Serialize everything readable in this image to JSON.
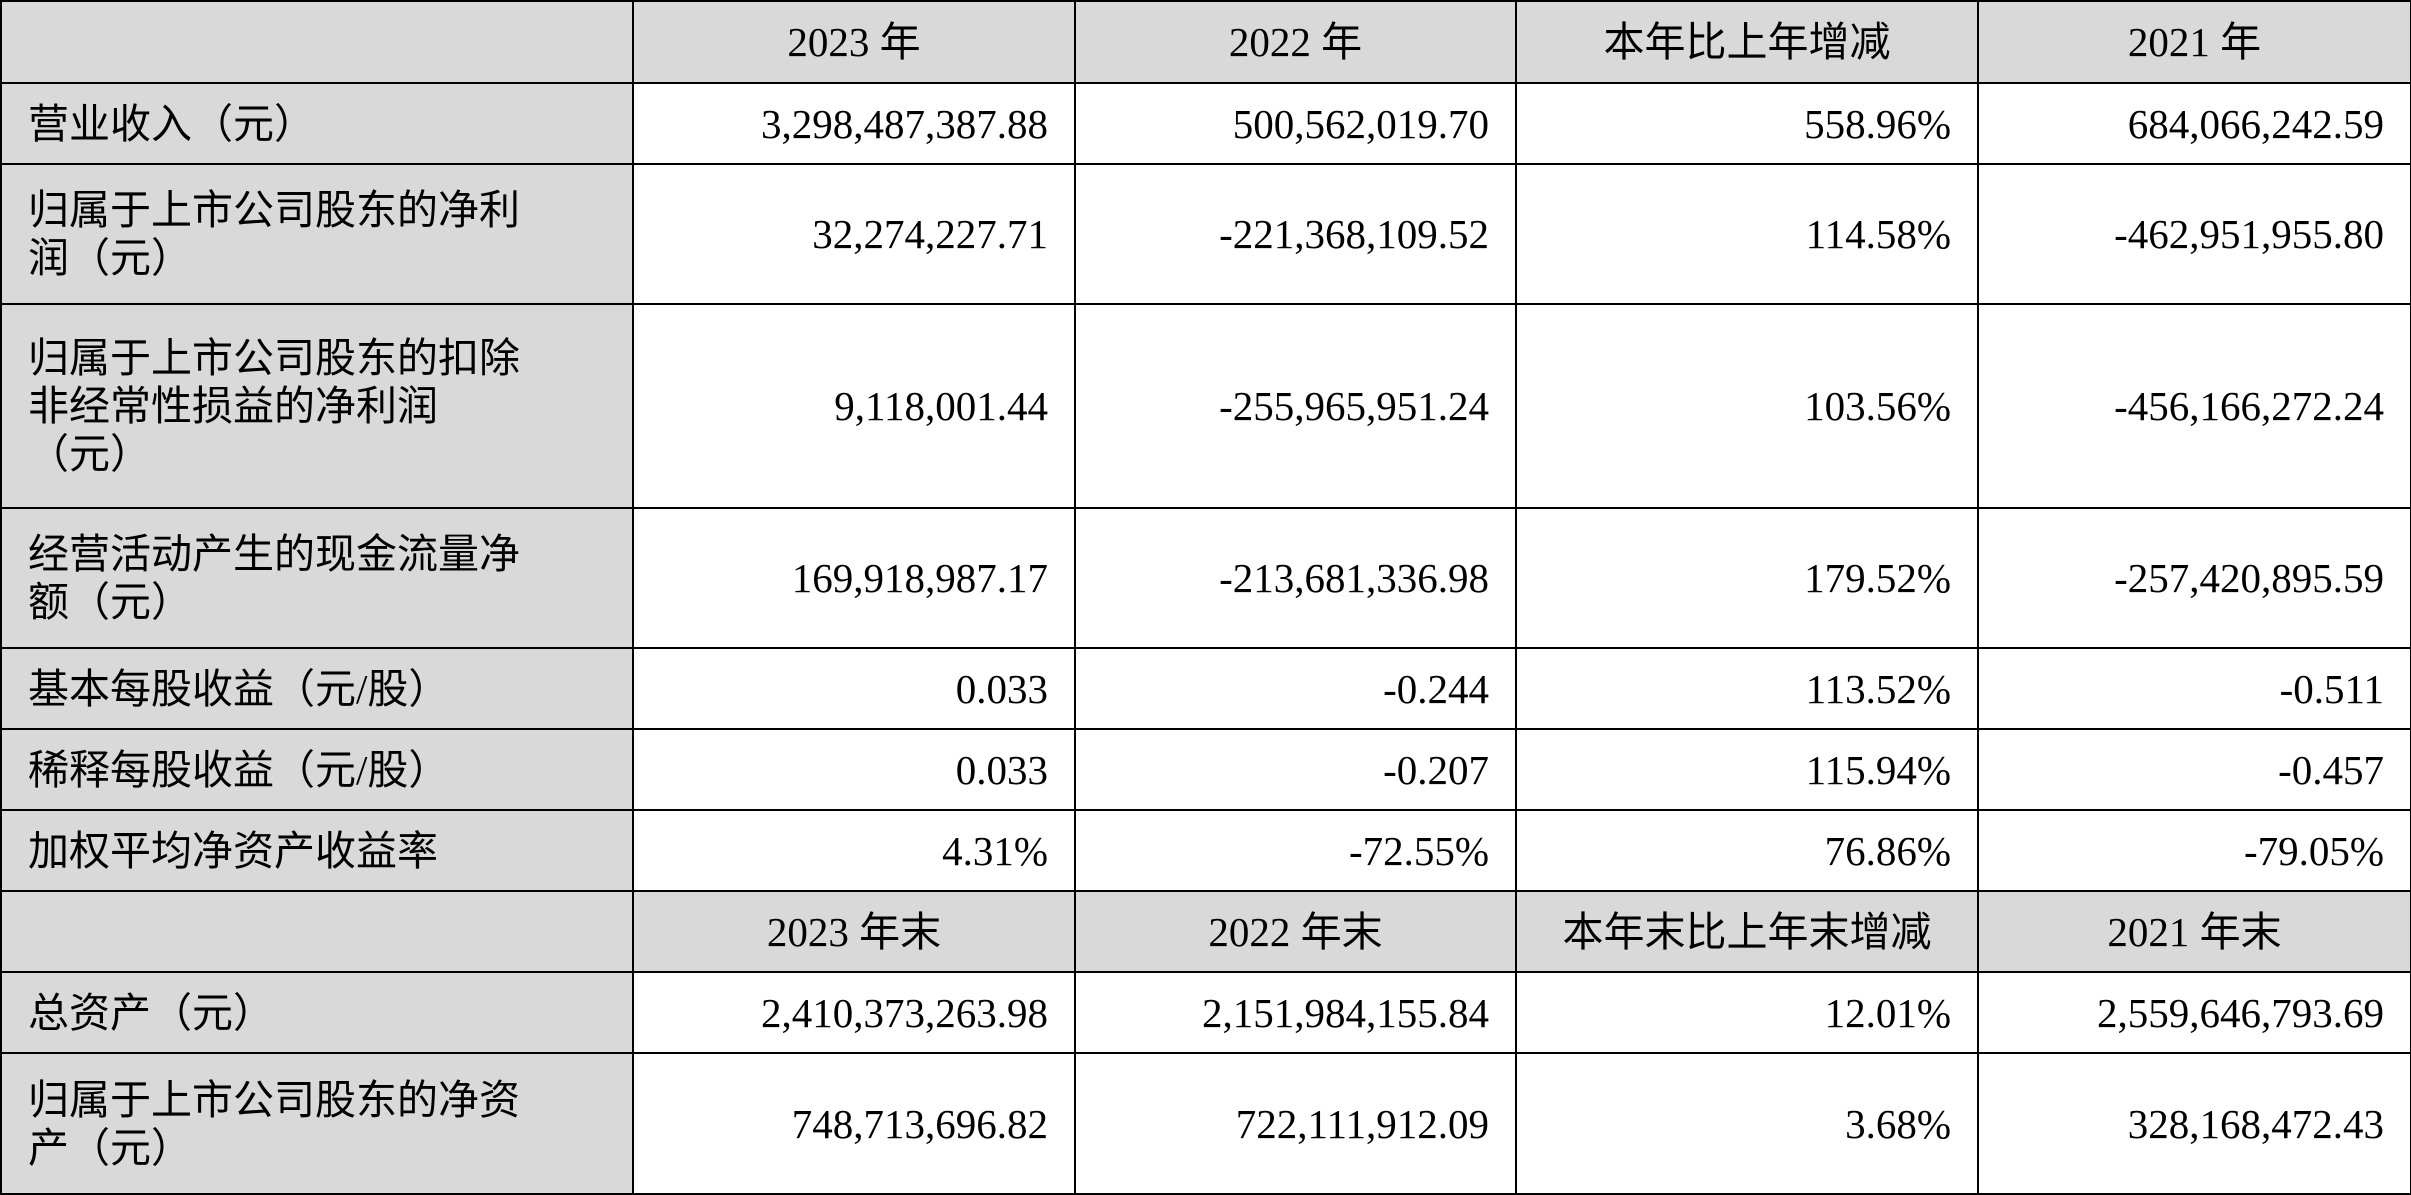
{
  "header_1": {
    "corner": "",
    "columns": [
      "2023 年",
      "2022 年",
      "本年比上年增减",
      "2021 年"
    ]
  },
  "rows_1": [
    {
      "label": "营业收入（元）",
      "values": [
        "3,298,487,387.88",
        "500,562,019.70",
        "558.96%",
        "684,066,242.59"
      ]
    },
    {
      "label": "归属于上市公司股东的净利\n润（元）",
      "values": [
        "32,274,227.71",
        "-221,368,109.52",
        "114.58%",
        "-462,951,955.80"
      ]
    },
    {
      "label": "归属于上市公司股东的扣除\n非经常性损益的净利润\n（元）",
      "values": [
        "9,118,001.44",
        "-255,965,951.24",
        "103.56%",
        "-456,166,272.24"
      ]
    },
    {
      "label": "经营活动产生的现金流量净\n额（元）",
      "values": [
        "169,918,987.17",
        "-213,681,336.98",
        "179.52%",
        "-257,420,895.59"
      ]
    },
    {
      "label": "基本每股收益（元/股）",
      "values": [
        "0.033",
        "-0.244",
        "113.52%",
        "-0.511"
      ]
    },
    {
      "label": "稀释每股收益（元/股）",
      "values": [
        "0.033",
        "-0.207",
        "115.94%",
        "-0.457"
      ]
    },
    {
      "label": "加权平均净资产收益率",
      "values": [
        "4.31%",
        "-72.55%",
        "76.86%",
        "-79.05%"
      ]
    }
  ],
  "header_2": {
    "corner": "",
    "columns": [
      "2023 年末",
      "2022 年末",
      "本年末比上年末增减",
      "2021 年末"
    ]
  },
  "rows_2": [
    {
      "label": "总资产（元）",
      "values": [
        "2,410,373,263.98",
        "2,151,984,155.84",
        "12.01%",
        "2,559,646,793.69"
      ]
    },
    {
      "label": "归属于上市公司股东的净资\n产（元）",
      "values": [
        "748,713,696.82",
        "722,111,912.09",
        "3.68%",
        "328,168,472.43"
      ]
    }
  ]
}
